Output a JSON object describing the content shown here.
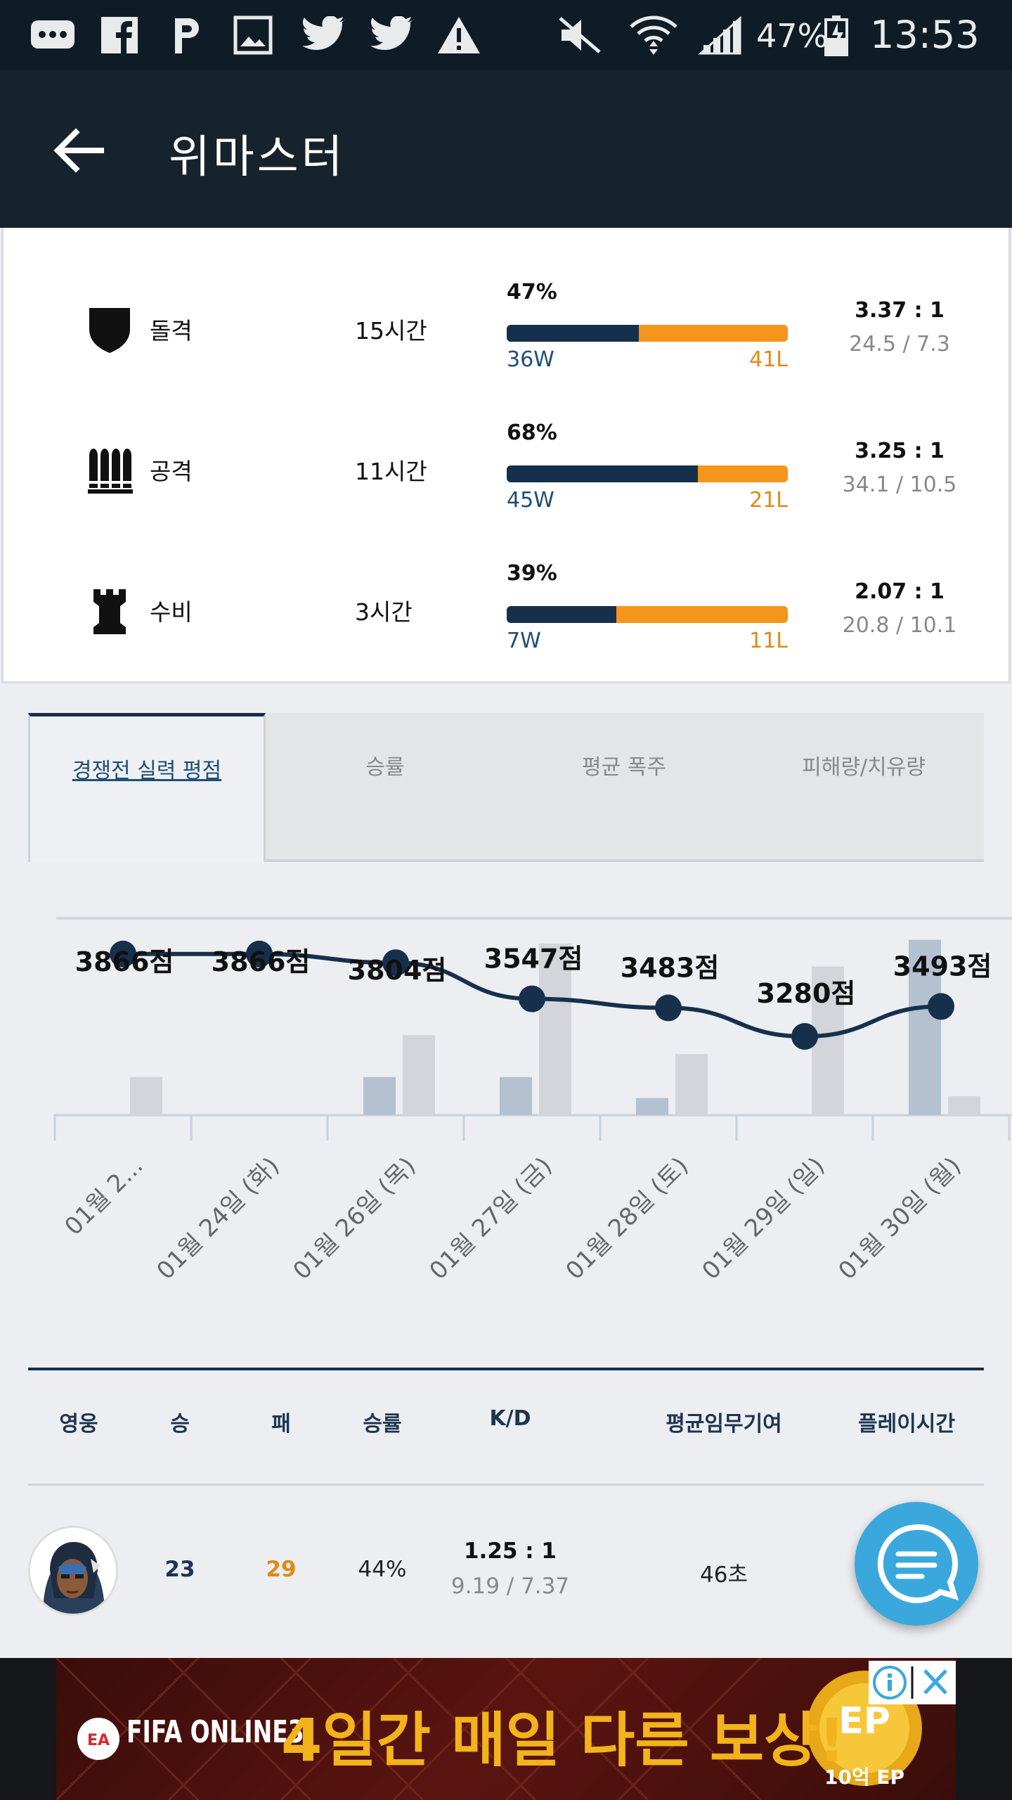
{
  "status_bar": {
    "battery": "47%",
    "time": "13:53"
  },
  "app_bar": {
    "title": "위마스터"
  },
  "roles": [
    {
      "name": "돌격",
      "icon": "shield-icon",
      "time": "15시간",
      "win_pct": "47%",
      "win_fraction": 0.47,
      "wins": "36W",
      "losses": "41L",
      "kd": "3.37 : 1",
      "kd_detail": "24.5 / 7.3"
    },
    {
      "name": "공격",
      "icon": "bullets-icon",
      "time": "11시간",
      "win_pct": "68%",
      "win_fraction": 0.68,
      "wins": "45W",
      "losses": "21L",
      "kd": "3.25 : 1",
      "kd_detail": "34.1 / 10.5"
    },
    {
      "name": "수비",
      "icon": "rook-tower-icon",
      "time": "3시간",
      "win_pct": "39%",
      "win_fraction": 0.39,
      "wins": "7W",
      "losses": "11L",
      "kd": "2.07 : 1",
      "kd_detail": "20.8 / 10.1"
    }
  ],
  "tabs": [
    {
      "label": "경쟁전 실력 평점",
      "active": true
    },
    {
      "label": "승률",
      "active": false
    },
    {
      "label": "평균 폭주",
      "active": false
    },
    {
      "label": "피해량/치유량",
      "active": false
    }
  ],
  "chart_data": {
    "type": "line",
    "categories": [
      "01월 2...",
      "01월 24일 (화)",
      "01월 26일 (목)",
      "01월 27일 (금)",
      "01월 28일 (토)",
      "01월 29일 (일)",
      "01월 30일 (월)"
    ],
    "series": [
      {
        "values": [
          3866,
          3866,
          3804,
          3547,
          3483,
          3280,
          3493
        ]
      }
    ],
    "point_labels": [
      "3866점",
      "3866점",
      "3804점",
      "3547점",
      "3483점",
      "3280점",
      "3493점"
    ],
    "bars_a": [
      0,
      0,
      0.2,
      0.2,
      0.09,
      0,
      0.92
    ],
    "bars_b": [
      0.2,
      0,
      0.42,
      0.9,
      0.32,
      0.78,
      0.1
    ],
    "colors": {
      "line": "#16304c",
      "bar_a": "#b3c1d1",
      "bar_b": "#d3d5da"
    }
  },
  "table": {
    "headers": [
      "영웅",
      "승",
      "패",
      "승률",
      "K/D",
      "평균임무기여",
      "플레이시간"
    ],
    "row": {
      "wins": "23",
      "losses": "29",
      "win_rate": "44%",
      "kd": "1.25 : 1",
      "kd_detail": "9.19 / 7.37",
      "objective": "46초"
    }
  },
  "ad": {
    "text": "4일간 매일 다른 보상!",
    "brand": "FIFA ONLINE3",
    "badge_text": "10억 EP",
    "coin_text": "EP"
  }
}
